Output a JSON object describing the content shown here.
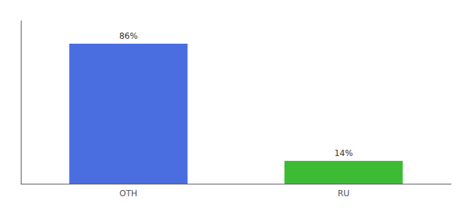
{
  "chart_data": {
    "type": "bar",
    "categories": [
      "OTH",
      "RU"
    ],
    "values": [
      86,
      14
    ],
    "value_labels": [
      "86%",
      "14%"
    ],
    "colors": [
      "#4a6ee0",
      "#3dbb35"
    ],
    "ylim": [
      0,
      100
    ],
    "tick_labels": "x",
    "data_labels": true,
    "grid": false
  }
}
